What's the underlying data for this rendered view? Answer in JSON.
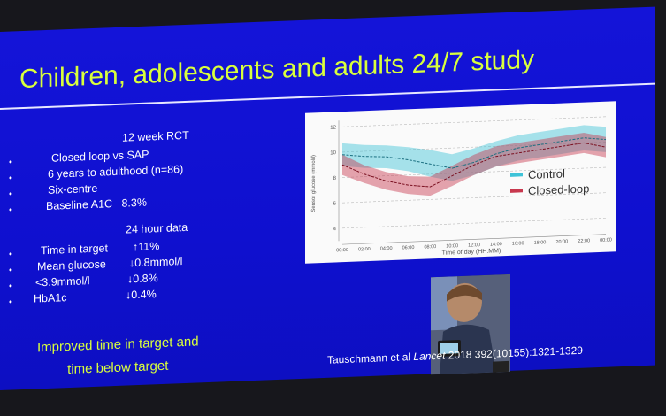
{
  "slide": {
    "title": "Children, adolescents and adults 24/7 study",
    "design": {
      "heading": "12 week RCT",
      "items": [
        "Closed loop vs SAP",
        "6 years to adulthood (n=86)",
        "Six-centre",
        "Baseline A1C   8.3%"
      ]
    },
    "results": {
      "heading": "24 hour data",
      "rows": [
        [
          "Time in target",
          "↑11%"
        ],
        [
          "Mean glucose",
          "↓0.8mmol/l"
        ],
        [
          "<3.9mmol/l",
          "↓0.8%"
        ],
        [
          "HbA1c",
          "↓0.4%"
        ]
      ]
    },
    "conclusion": [
      "Improved time in target and",
      "time below target"
    ],
    "citation": {
      "authors": "Tauschmann et al",
      "journal": "Lancet",
      "details": "2018 392(10155):1321-1329"
    }
  },
  "chart": {
    "type": "line",
    "x_label": "Time of day (HH:MM)",
    "y_label": "Sensor glucose (mmol/l)",
    "categories": [
      "00:00",
      "02:00",
      "04:00",
      "06:00",
      "08:00",
      "10:00",
      "12:00",
      "14:00",
      "16:00",
      "18:00",
      "20:00",
      "22:00",
      "00:00"
    ],
    "ylim": [
      3,
      12.5
    ],
    "yticks": [
      4,
      6,
      8,
      10,
      12
    ],
    "series": [
      {
        "name": "Control",
        "color": "#3ec3d8",
        "values": [
          9.8,
          9.6,
          9.5,
          9.2,
          8.8,
          8.4,
          8.8,
          9.4,
          9.8,
          10.0,
          10.2,
          10.4,
          10.2
        ],
        "upper": [
          10.7,
          10.5,
          10.4,
          10.2,
          9.9,
          9.5,
          9.9,
          10.4,
          10.8,
          11.0,
          11.2,
          11.4,
          11.2
        ],
        "lower": [
          8.9,
          8.7,
          8.6,
          8.3,
          7.8,
          7.4,
          7.8,
          8.4,
          8.8,
          9.0,
          9.2,
          9.4,
          9.2
        ]
      },
      {
        "name": "Closed-loop",
        "color": "#c8384e",
        "values": [
          9.0,
          8.2,
          7.6,
          7.2,
          7.0,
          7.8,
          8.6,
          9.2,
          9.4,
          9.6,
          9.8,
          10.0,
          9.6
        ],
        "upper": [
          9.8,
          8.9,
          8.3,
          7.9,
          7.8,
          8.6,
          9.4,
          10.0,
          10.2,
          10.4,
          10.6,
          10.8,
          10.4
        ],
        "lower": [
          8.2,
          7.5,
          6.9,
          6.5,
          6.3,
          7.0,
          7.8,
          8.4,
          8.6,
          8.8,
          9.0,
          9.2,
          8.8
        ]
      }
    ]
  }
}
